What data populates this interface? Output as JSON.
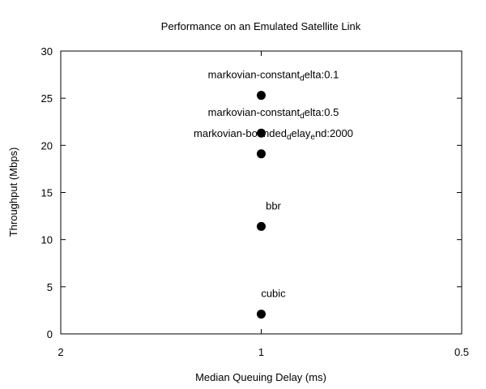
{
  "chart_data": {
    "type": "scatter",
    "title": "Performance on an Emulated Satellite Link",
    "xlabel": "Median Queuing Delay (ms)",
    "ylabel": "Throughput (Mbps)",
    "x_scale": "log",
    "x_reversed": true,
    "xlim": [
      2,
      0.5
    ],
    "ylim": [
      0,
      30
    ],
    "xticks": [
      {
        "value": 2,
        "label": "2"
      },
      {
        "value": 1,
        "label": "1"
      },
      {
        "value": 0.5,
        "label": "0.5"
      }
    ],
    "yticks": [
      0,
      5,
      10,
      15,
      20,
      25,
      30
    ],
    "grid": false,
    "legend": "none",
    "marker_color": "#000000",
    "points": [
      {
        "x": 1,
        "y": 25.3,
        "label_parts": [
          [
            "markovian-constant",
            ""
          ],
          [
            "d",
            "sub"
          ],
          [
            "elta:0.1",
            ""
          ]
        ]
      },
      {
        "x": 1,
        "y": 21.3,
        "label_parts": [
          [
            "markovian-constant",
            ""
          ],
          [
            "d",
            "sub"
          ],
          [
            "elta:0.5",
            ""
          ]
        ]
      },
      {
        "x": 1,
        "y": 19.1,
        "label_parts": [
          [
            "markovian-bounded",
            ""
          ],
          [
            "d",
            "sub"
          ],
          [
            "elay",
            ""
          ],
          [
            "e",
            "sub"
          ],
          [
            "nd:2000",
            ""
          ]
        ]
      },
      {
        "x": 1,
        "y": 11.4,
        "label_parts": [
          [
            "bbr",
            ""
          ]
        ]
      },
      {
        "x": 1,
        "y": 2.1,
        "label_parts": [
          [
            "cubic",
            ""
          ]
        ]
      }
    ]
  }
}
